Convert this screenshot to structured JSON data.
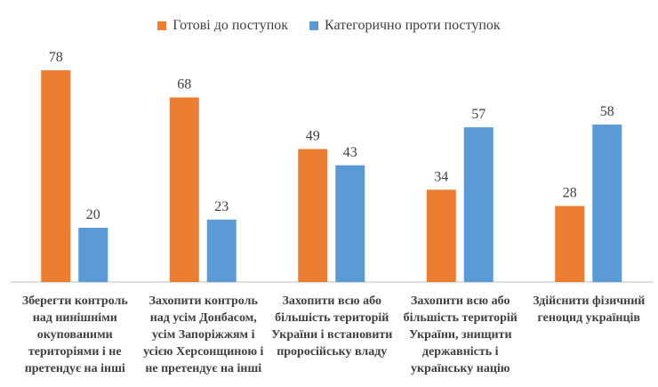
{
  "chart_data": {
    "type": "bar",
    "categories": [
      "Зберегти контроль\nнад нинішніми\nокупованими\nтериторіями і не\nпретендує на інші",
      "Захопити контроль\nнад усім Донбасом,\nусім Запоріжжям і\nусією Херсонщиною і\nне претендує на інші",
      "Захопити всю або\nбільшість територій\nУкраїни і встановити\nпроросійську владу",
      "Захопити всю або\nбільшість територій\nУкраїни, знищити\nдержавність і\nукраїнську націю",
      "Здійснити фізичний\nгеноцид українців"
    ],
    "series": [
      {
        "name": "Готові до поступок",
        "color": "#ED7D31",
        "values": [
          78,
          68,
          49,
          34,
          28
        ]
      },
      {
        "name": "Категорично проти поступок",
        "color": "#5B9BD5",
        "values": [
          20,
          23,
          43,
          57,
          58
        ]
      }
    ],
    "ylim": [
      0,
      80
    ],
    "grid": false,
    "legend": "top",
    "data_labels": true
  }
}
